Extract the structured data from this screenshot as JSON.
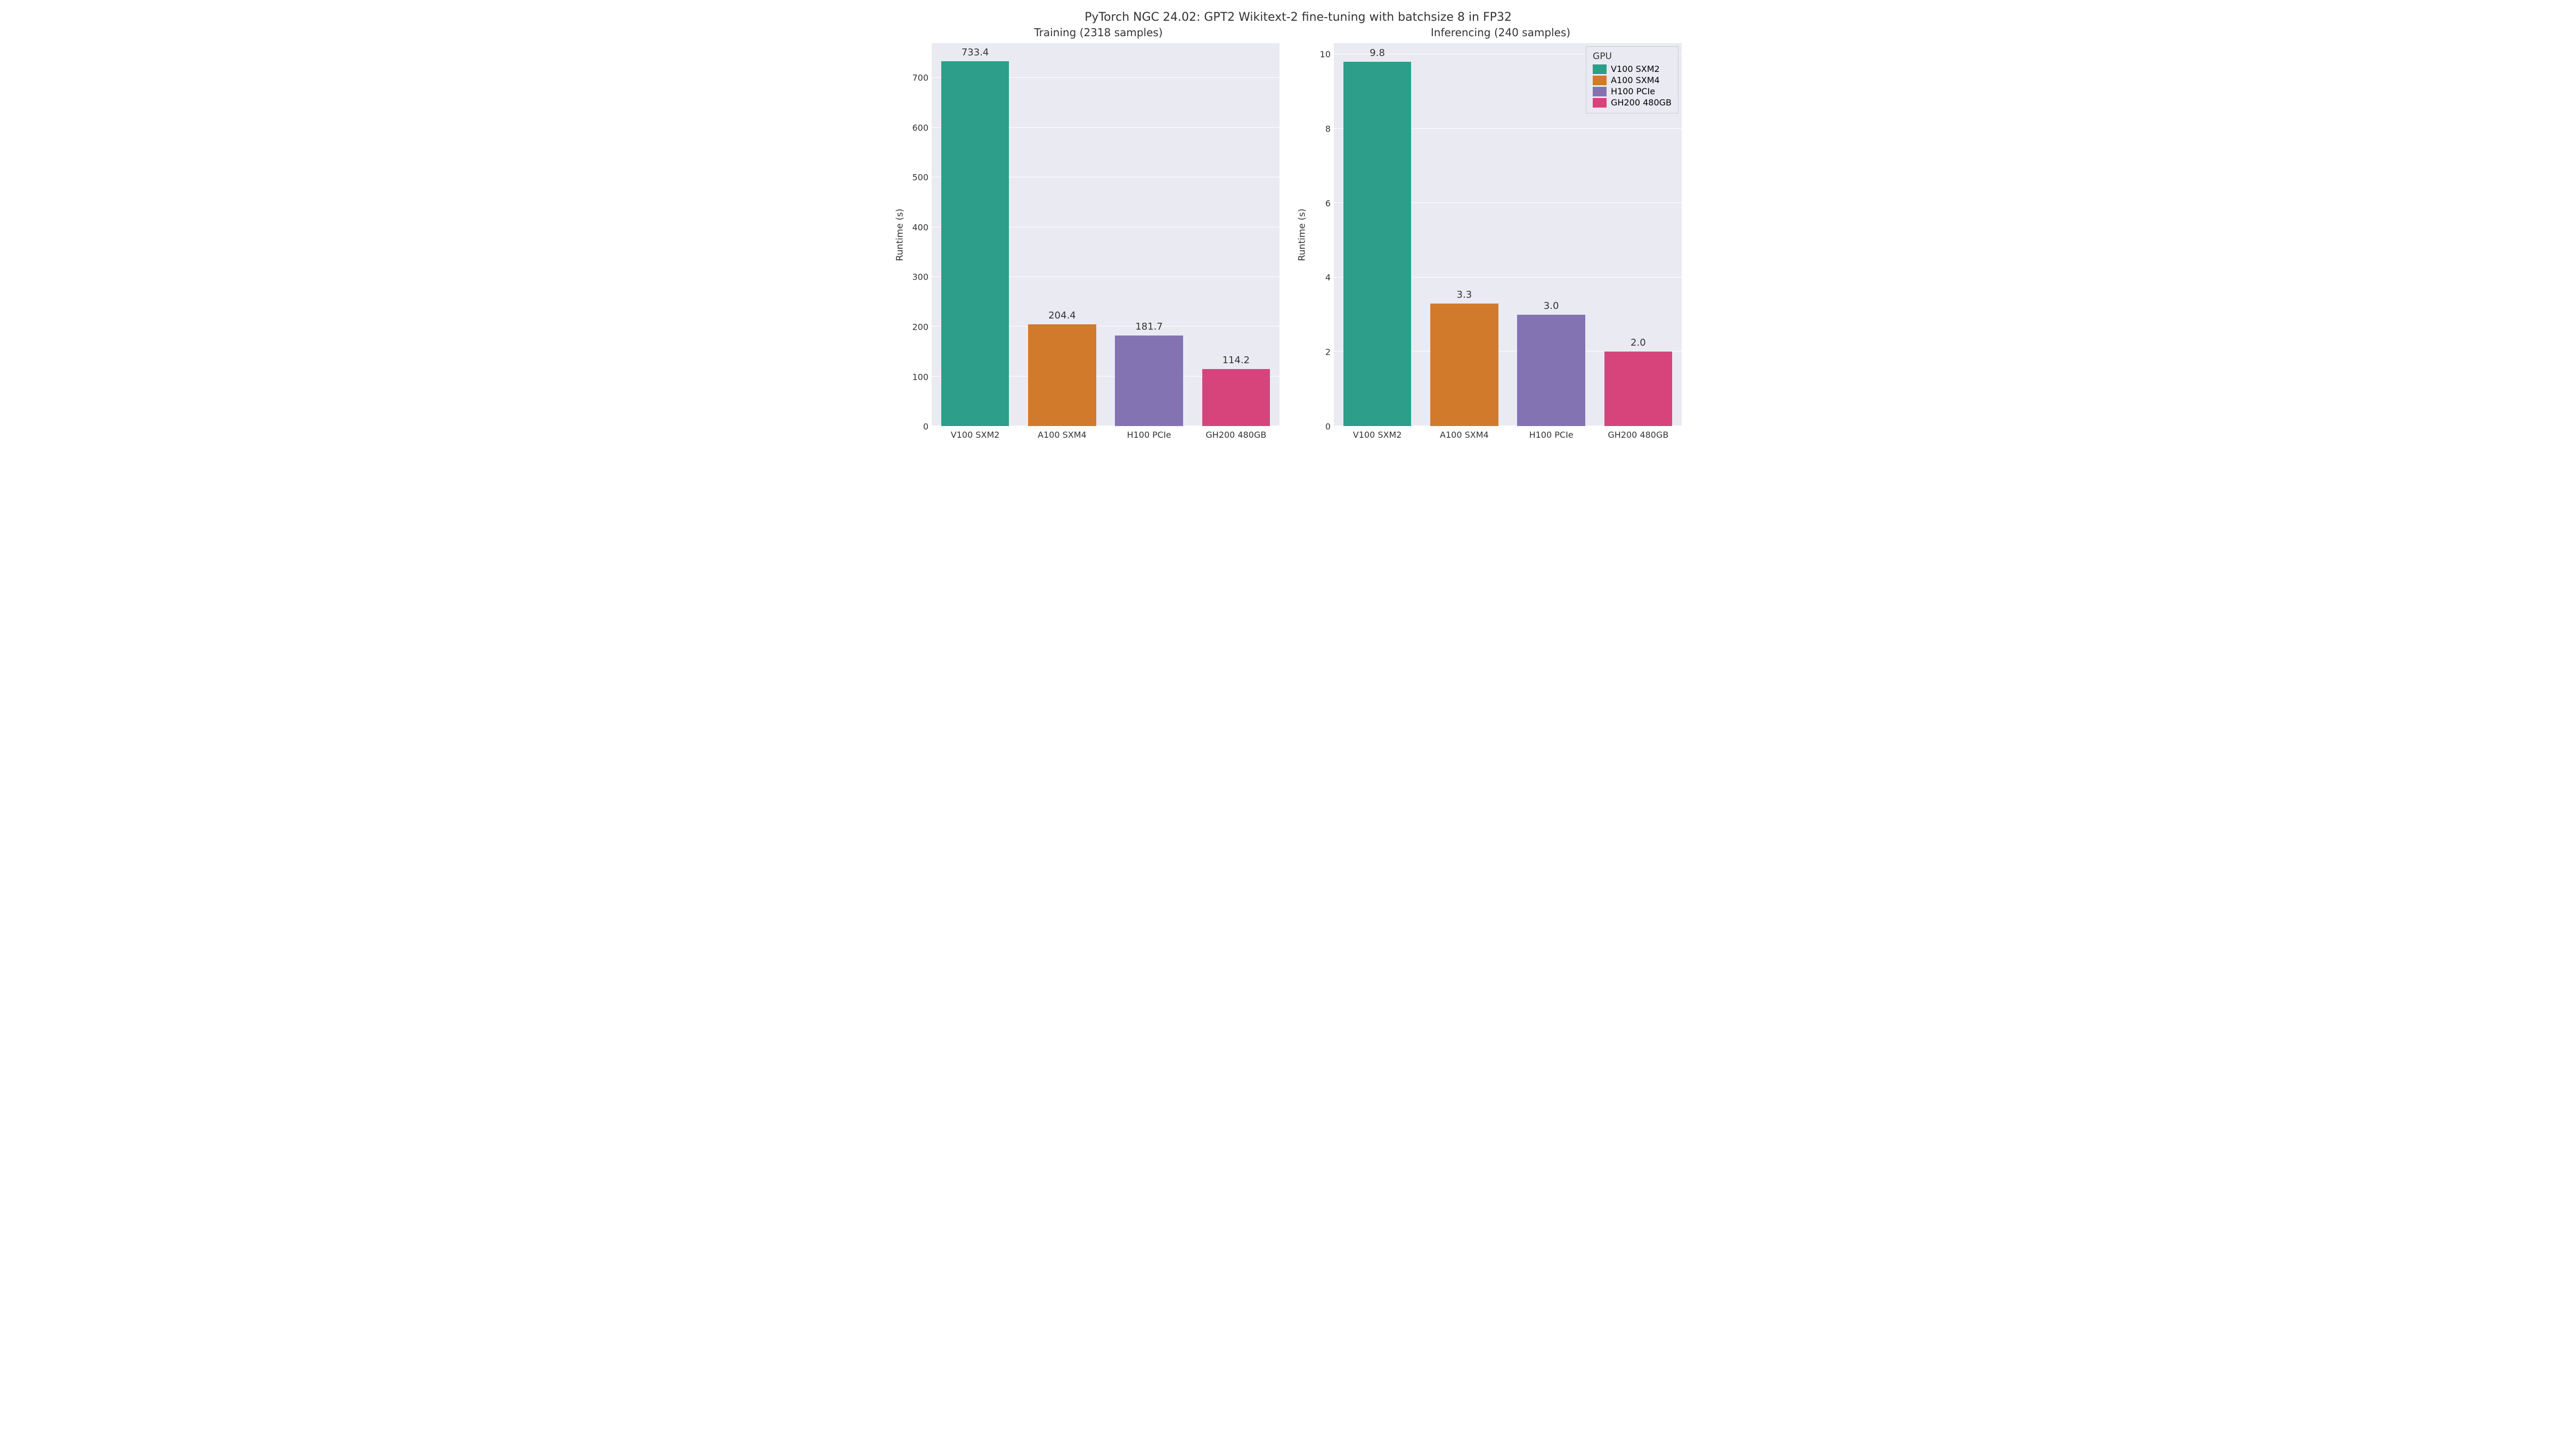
{
  "suptitle": "PyTorch NGC 24.02: GPT2 Wikitext-2 fine-tuning with batchsize 8 in FP32",
  "ylabel": "Runtime (s)",
  "colors": {
    "background": "#eaeaf2",
    "grid": "#ffffff",
    "text": "#333333"
  },
  "categories": [
    "V100 SXM2",
    "A100 SXM4",
    "H100 PCIe",
    "GH200 480GB"
  ],
  "bar_colors": [
    "#2d9e89",
    "#d27a2c",
    "#8373b3",
    "#d6447b"
  ],
  "bar_width": 0.78,
  "legend": {
    "title": "GPU",
    "items": [
      "V100 SXM2",
      "A100 SXM4",
      "H100 PCIe",
      "GH200 480GB"
    ]
  },
  "panels": [
    {
      "title": "Training (2318 samples)",
      "values": [
        733.4,
        204.4,
        181.7,
        114.2
      ],
      "value_labels": [
        "733.4",
        "204.4",
        "181.7",
        "114.2"
      ],
      "ylim": [
        0,
        770
      ],
      "yticks": [
        0,
        100,
        200,
        300,
        400,
        500,
        600,
        700
      ],
      "ytick_labels": [
        "0",
        "100",
        "200",
        "300",
        "400",
        "500",
        "600",
        "700"
      ],
      "show_legend": false
    },
    {
      "title": "Inferencing (240 samples)",
      "values": [
        9.8,
        3.3,
        3.0,
        2.0
      ],
      "value_labels": [
        "9.8",
        "3.3",
        "3.0",
        "2.0"
      ],
      "ylim": [
        0,
        10.3
      ],
      "yticks": [
        0,
        2,
        4,
        6,
        8,
        10
      ],
      "ytick_labels": [
        "0",
        "2",
        "4",
        "6",
        "8",
        "10"
      ],
      "show_legend": true
    }
  ],
  "label_fontsize": 17,
  "tick_fontsize": 16,
  "title_fontsize": 20,
  "suptitle_fontsize": 22,
  "value_label_fontsize": 18
}
